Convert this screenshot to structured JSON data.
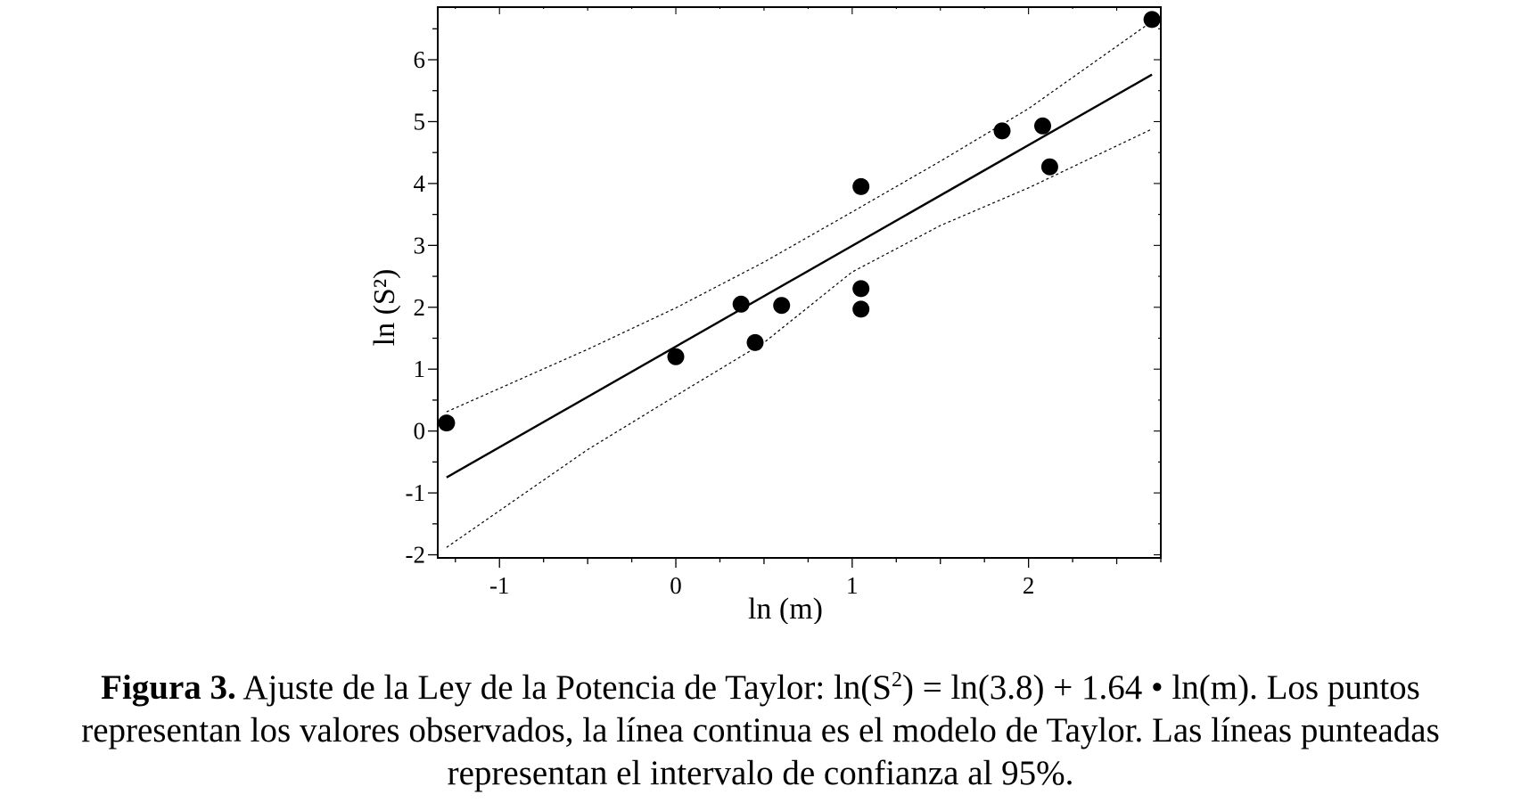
{
  "chart_data": {
    "type": "scatter",
    "xlabel": "ln (m)",
    "ylabel": "ln (S²)",
    "xlim": [
      -1.35,
      2.75
    ],
    "ylim": [
      -2.05,
      6.85
    ],
    "xticks": [
      -1,
      0,
      1,
      2
    ],
    "xtick_labels": [
      "-1",
      "0",
      "1",
      "2"
    ],
    "yticks": [
      -2,
      -1,
      0,
      1,
      2,
      3,
      4,
      5,
      6
    ],
    "ytick_labels": [
      "-2",
      "-1",
      "0",
      "1",
      "2",
      "3",
      "4",
      "5",
      "6"
    ],
    "grid": false,
    "legend": "none",
    "series": [
      {
        "role": "observed",
        "marker": "filled-circle",
        "points": [
          {
            "x": -1.3,
            "y": 0.13
          },
          {
            "x": 0.0,
            "y": 1.2
          },
          {
            "x": 0.37,
            "y": 2.05
          },
          {
            "x": 0.45,
            "y": 1.43
          },
          {
            "x": 0.6,
            "y": 2.03
          },
          {
            "x": 1.05,
            "y": 3.95
          },
          {
            "x": 1.05,
            "y": 2.3
          },
          {
            "x": 1.05,
            "y": 1.97
          },
          {
            "x": 1.85,
            "y": 4.85
          },
          {
            "x": 2.08,
            "y": 4.93
          },
          {
            "x": 2.12,
            "y": 4.27
          },
          {
            "x": 2.7,
            "y": 6.65
          }
        ]
      },
      {
        "role": "model",
        "style": "solid",
        "points": [
          {
            "x": -1.3,
            "y": -0.75
          },
          {
            "x": 2.7,
            "y": 5.76
          }
        ]
      },
      {
        "role": "upper-ci",
        "style": "dotted",
        "points": [
          {
            "x": -1.3,
            "y": 0.31
          },
          {
            "x": -0.5,
            "y": 1.32
          },
          {
            "x": 0.0,
            "y": 1.99
          },
          {
            "x": 0.5,
            "y": 2.73
          },
          {
            "x": 1.0,
            "y": 3.54
          },
          {
            "x": 1.5,
            "y": 4.36
          },
          {
            "x": 2.0,
            "y": 5.21
          },
          {
            "x": 2.7,
            "y": 6.62
          }
        ]
      },
      {
        "role": "lower-ci",
        "style": "dotted",
        "points": [
          {
            "x": -1.3,
            "y": -1.88
          },
          {
            "x": -0.5,
            "y": -0.3
          },
          {
            "x": 0.0,
            "y": 0.57
          },
          {
            "x": 0.5,
            "y": 1.43
          },
          {
            "x": 1.0,
            "y": 2.57
          },
          {
            "x": 1.5,
            "y": 3.32
          },
          {
            "x": 2.0,
            "y": 3.93
          },
          {
            "x": 2.7,
            "y": 4.88
          }
        ]
      }
    ],
    "colors": {
      "marker": "#000000",
      "model_line": "#000000",
      "ci_line": "#000000",
      "axes": "#000000"
    }
  },
  "caption": {
    "label": "Figura 3.",
    "line1_a": " Ajuste de la Ley de la Potencia de Taylor: ln(S",
    "line1_sup": "2",
    "line1_b": ") = ln(3.8) + 1.64 • ln(m). Los puntos",
    "line2": "representan los valores observados, la línea continua es el modelo de Taylor. Las líneas punteadas",
    "line3": "representan el intervalo de confianza al 95%."
  }
}
